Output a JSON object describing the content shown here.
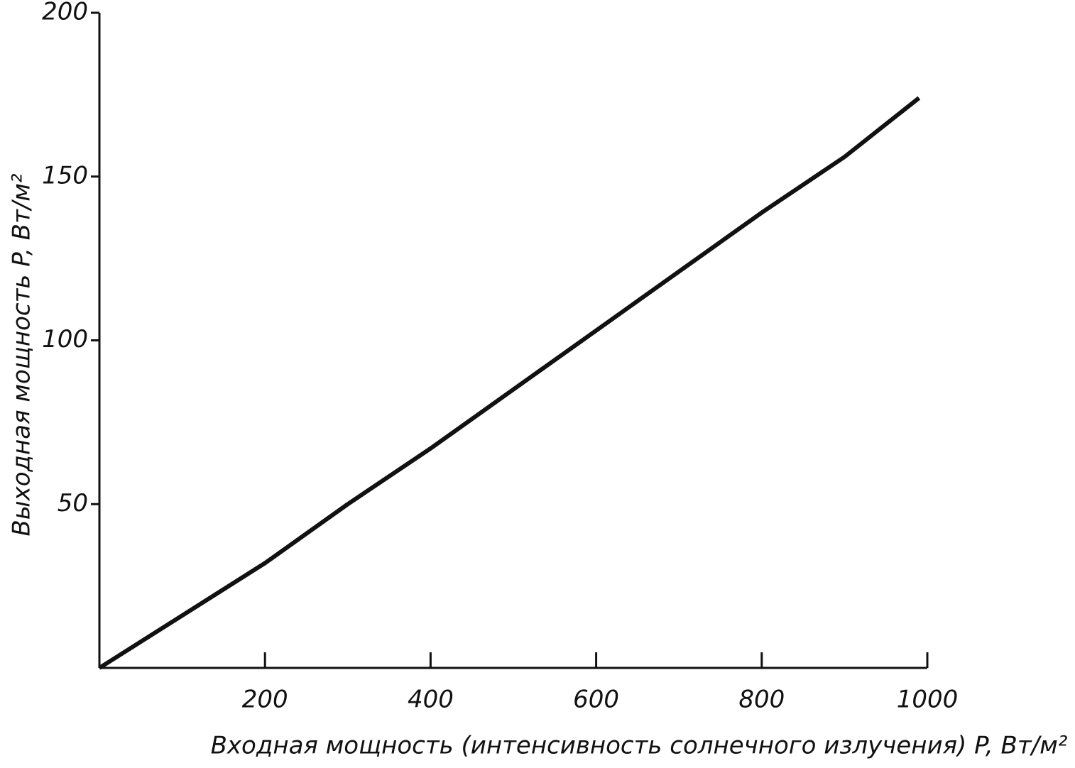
{
  "chart_data": {
    "type": "line",
    "x_label": "Входная мощность (интенсивность солнечного излучения) P, Вт/м²",
    "y_label": "Выходная мощность P, Вт/м²",
    "x": [
      0,
      100,
      200,
      300,
      400,
      500,
      600,
      700,
      800,
      900,
      990
    ],
    "series": [
      {
        "name": "P",
        "color": "#111111",
        "values": [
          0,
          16,
          32,
          50,
          67,
          85,
          103,
          121,
          139,
          156,
          174
        ]
      }
    ],
    "xlim": [
      0,
      1000
    ],
    "ylim": [
      0,
      200
    ],
    "xticks": [
      200,
      400,
      600,
      800,
      1000
    ],
    "yticks": [
      50,
      100,
      150,
      200
    ]
  }
}
